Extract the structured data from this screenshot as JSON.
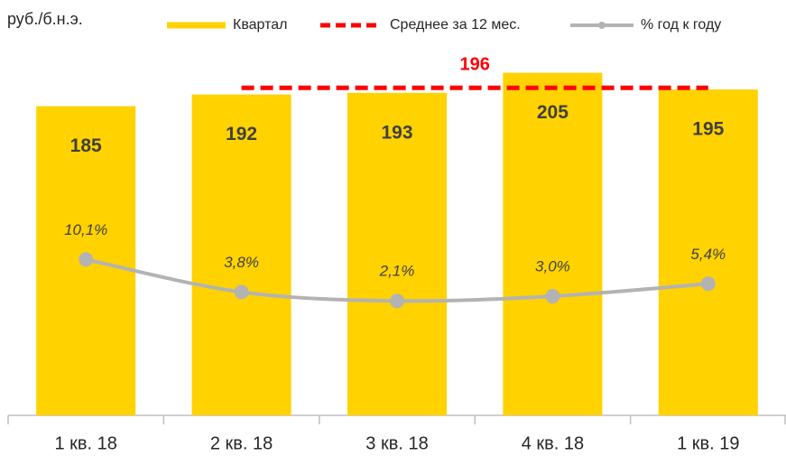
{
  "chart_data": {
    "type": "bar",
    "y_label": "руб./б.н.э.",
    "categories": [
      "1 кв. 18",
      "2 кв. 18",
      "3 кв. 18",
      "4 кв. 18",
      "1 кв. 19"
    ],
    "ylim": [
      0,
      248
    ],
    "y2lim": [
      -20,
      60
    ],
    "series": [
      {
        "name": "Квартал",
        "type": "bar",
        "color": "#ffd200",
        "values": [
          185,
          192,
          193,
          205,
          195
        ]
      },
      {
        "name": "Среднее за 12 мес.",
        "type": "dashed-line",
        "color": "#ff0000",
        "values": [
          null,
          196,
          196,
          196,
          196
        ]
      },
      {
        "name": "% год к году",
        "type": "line",
        "axis": "y2",
        "color": "#b3b3b3",
        "values": [
          10.1,
          3.8,
          2.1,
          3.0,
          5.4
        ],
        "value_labels": [
          "10,1%",
          "3,8%",
          "2,1%",
          "3,0%",
          "5,4%"
        ]
      }
    ]
  }
}
